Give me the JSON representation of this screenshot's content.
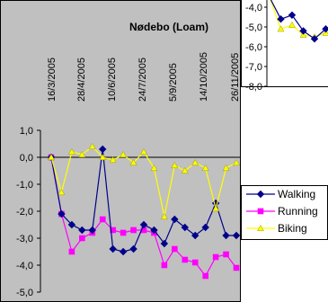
{
  "chart_data": [
    {
      "type": "line",
      "title": "Nødebo (Loam)",
      "xlabel": "",
      "ylabel": "",
      "ylim": [
        -5.0,
        1.0
      ],
      "yticks": [
        1.0,
        0.0,
        -1.0,
        -2.0,
        -3.0,
        -4.0,
        -5.0
      ],
      "ytick_labels": [
        "1,0",
        "0,0",
        "-1,0",
        "-2,0",
        "-3,0",
        "-4,0",
        "-5,0"
      ],
      "date_labels": [
        "16/3/2005",
        "28/4/2005",
        "10/6/2005",
        "24/7/2005",
        "5/9/2005",
        "14/10/2005",
        "26/11/2005"
      ],
      "grid": false,
      "legend_position": "right",
      "series": [
        {
          "name": "Walking",
          "color": "#00008B",
          "marker": "diamond",
          "values": [
            0.0,
            -2.1,
            -2.5,
            -2.7,
            -2.7,
            0.3,
            -3.4,
            -3.5,
            -3.4,
            -2.5,
            -2.7,
            -3.2,
            -2.3,
            -2.6,
            -2.9,
            -2.6,
            -1.7,
            -2.9,
            -2.9
          ]
        },
        {
          "name": "Running",
          "color": "#FF00FF",
          "marker": "square",
          "values": [
            0.0,
            -2.1,
            -3.5,
            -3.0,
            -2.8,
            -2.3,
            -2.7,
            -2.8,
            -2.7,
            -2.7,
            -2.8,
            -4.0,
            -3.4,
            -3.8,
            -3.9,
            -4.4,
            -3.7,
            -3.6,
            -4.1
          ]
        },
        {
          "name": "Biking",
          "color": "#FFFF00",
          "marker": "triangle",
          "values": [
            0.0,
            -1.3,
            0.2,
            0.1,
            0.4,
            0.0,
            -0.1,
            0.1,
            -0.2,
            0.2,
            -0.4,
            -2.2,
            -0.3,
            -0.5,
            -0.2,
            -0.4,
            -1.9,
            -0.4,
            -0.2
          ]
        }
      ]
    },
    {
      "type": "line",
      "title": "",
      "ylim": [
        -8.0,
        -4.0
      ],
      "yticks": [
        -4.0,
        -5.0,
        -6.0,
        -7.0,
        -8.0
      ],
      "ytick_labels": [
        "-4,0",
        "-5,0",
        "-6,0",
        "-7,0",
        "-8,0"
      ],
      "grid": false,
      "series": [
        {
          "name": "Walking",
          "color": "#00008B",
          "marker": "diamond",
          "values": [
            -3.5,
            -4.6,
            -4.4,
            -5.2,
            -5.6,
            -5.1
          ]
        },
        {
          "name": "Biking",
          "color": "#FFFF00",
          "marker": "triangle",
          "values": [
            -3.5,
            -5.1,
            -4.9,
            -5.4,
            -5.5,
            -5.3
          ]
        }
      ]
    }
  ]
}
